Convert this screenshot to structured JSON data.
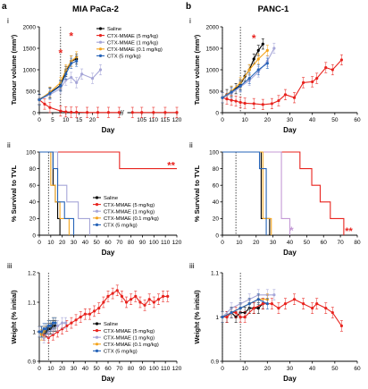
{
  "panel_letters": [
    "a",
    "b"
  ],
  "columns": [
    "MIA PaCa-2",
    "PANC-1"
  ],
  "row_labels": [
    "i",
    "ii",
    "iii"
  ],
  "legend": [
    "Saline",
    "CTX-MMAE (5 mg/kg)",
    "CTX-MMAE (1 mg/kg)",
    "CTX-MMAE (0.1 mg/kg)",
    "CTX (5 mg/kg)"
  ],
  "colors": {
    "saline": "#000000",
    "ctx5": "#e8231e",
    "ctx1": "#a6a6d8",
    "ctx01": "#f4a41c",
    "ctxonly": "#2563b8",
    "mmae_panc": "#c49ad6"
  },
  "annotations": {
    "star": "*",
    "double_star": "**"
  },
  "chart_data": [
    {
      "id": "a-i",
      "type": "line",
      "row_label": "i",
      "xlabel": "Day",
      "ylabel": "Tumour volume (mm³)",
      "xlim": [
        0,
        120
      ],
      "ylim": [
        0,
        2000
      ],
      "broken_x_axis": [
        [
          0,
          30
        ],
        [
          100,
          120
        ]
      ],
      "xticks": [
        0,
        5,
        10,
        15,
        20,
        105,
        110,
        115,
        120
      ],
      "yticks": [
        0,
        500,
        1000,
        1500,
        2000
      ],
      "vline": 8,
      "legend_position": "right",
      "series": [
        {
          "name": "Saline",
          "color": "#000000",
          "x": [
            0,
            4,
            8,
            10,
            12,
            14
          ],
          "y": [
            310,
            460,
            640,
            960,
            1200,
            1250
          ]
        },
        {
          "name": "CTX-MMAE (5 mg/kg)",
          "color": "#e8231e",
          "x": [
            0,
            2,
            4,
            8,
            10,
            12,
            14,
            18,
            22,
            26,
            30,
            101,
            105,
            110,
            115,
            120
          ],
          "y": [
            300,
            200,
            120,
            40,
            20,
            10,
            10,
            5,
            5,
            5,
            5,
            5,
            5,
            5,
            5,
            5
          ]
        },
        {
          "name": "CTX-MMAE (1 mg/kg)",
          "color": "#a6a6d8",
          "x": [
            0,
            4,
            8,
            10,
            12,
            14,
            16,
            20,
            23
          ],
          "y": [
            300,
            420,
            560,
            760,
            820,
            700,
            900,
            800,
            1000
          ]
        },
        {
          "name": "CTX-MMAE (0.1 mg/kg)",
          "color": "#f4a41c",
          "x": [
            0,
            4,
            8,
            10,
            12,
            14
          ],
          "y": [
            300,
            480,
            700,
            1000,
            1200,
            1300
          ]
        },
        {
          "name": "CTX (5 mg/kg)",
          "color": "#2563b8",
          "x": [
            0,
            4,
            8,
            10,
            12,
            14
          ],
          "y": [
            300,
            450,
            620,
            900,
            1150,
            1200
          ]
        }
      ],
      "stars": [
        {
          "x": 8,
          "y": 1300
        },
        {
          "x": 12,
          "y": 1700
        }
      ]
    },
    {
      "id": "a-ii",
      "type": "line",
      "row_label": "ii",
      "xlabel": "Day",
      "ylabel": "% Survival to TVL",
      "xlim": [
        0,
        120
      ],
      "ylim": [
        0,
        100
      ],
      "xticks": [
        0,
        10,
        20,
        30,
        40,
        50,
        60,
        70,
        80,
        90,
        100,
        110,
        120
      ],
      "yticks": [
        0,
        20,
        40,
        60,
        80,
        100
      ],
      "vline": 8,
      "legend_position": "bottom-right",
      "series": [
        {
          "name": "Saline",
          "color": "#000000",
          "step_x": [
            0,
            12,
            14,
            16,
            18
          ],
          "step_y": [
            100,
            60,
            40,
            20,
            0
          ]
        },
        {
          "name": "CTX-MMAE (5 mg/kg)",
          "color": "#e8231e",
          "step_x": [
            0,
            70,
            120
          ],
          "step_y": [
            100,
            80,
            80
          ]
        },
        {
          "name": "CTX-MMAE (1 mg/kg)",
          "color": "#a6a6d8",
          "step_x": [
            0,
            16,
            24,
            34,
            44
          ],
          "step_y": [
            100,
            60,
            40,
            20,
            0
          ]
        },
        {
          "name": "CTX-MMAE (0.1 mg/kg)",
          "color": "#f4a41c",
          "step_x": [
            0,
            10,
            14,
            18,
            26
          ],
          "step_y": [
            100,
            60,
            40,
            20,
            0
          ]
        },
        {
          "name": "CTX (5 mg/kg)",
          "color": "#2563b8",
          "step_x": [
            0,
            12,
            16,
            22,
            30
          ],
          "step_y": [
            100,
            80,
            40,
            20,
            0
          ]
        }
      ],
      "stars": [
        {
          "x": 115,
          "y": 80,
          "text": "**"
        }
      ]
    },
    {
      "id": "a-iii",
      "type": "line",
      "row_label": "iii",
      "xlabel": "Day",
      "ylabel": "Weight (% initial)",
      "xlim": [
        0,
        120
      ],
      "ylim": [
        0.9,
        1.2
      ],
      "xticks": [
        0,
        10,
        20,
        30,
        40,
        50,
        60,
        70,
        80,
        90,
        100,
        110,
        120
      ],
      "yticks": [
        0.9,
        1.0,
        1.1,
        1.2
      ],
      "vline": 8,
      "legend_position": "bottom-right",
      "series": [
        {
          "name": "Saline",
          "color": "#000000",
          "x": [
            0,
            2,
            4,
            6,
            8,
            10,
            12,
            14
          ],
          "y": [
            1.0,
            1.0,
            0.99,
            1.0,
            1.01,
            1.01,
            1.02,
            1.02
          ]
        },
        {
          "name": "CTX-MMAE (5 mg/kg)",
          "color": "#e8231e",
          "x": [
            0,
            4,
            8,
            12,
            16,
            20,
            24,
            28,
            32,
            36,
            40,
            44,
            48,
            52,
            56,
            60,
            64,
            68,
            72,
            76,
            80,
            84,
            88,
            92,
            96,
            100,
            104,
            108,
            112
          ],
          "y": [
            1.0,
            0.99,
            0.98,
            0.99,
            1.0,
            1.01,
            1.02,
            1.03,
            1.04,
            1.05,
            1.06,
            1.06,
            1.07,
            1.08,
            1.1,
            1.12,
            1.13,
            1.14,
            1.12,
            1.1,
            1.11,
            1.12,
            1.1,
            1.09,
            1.11,
            1.1,
            1.11,
            1.12,
            1.12
          ]
        },
        {
          "name": "CTX-MMAE (1 mg/kg)",
          "color": "#a6a6d8",
          "x": [
            0,
            4,
            8,
            12,
            16,
            20,
            23
          ],
          "y": [
            1.0,
            0.98,
            1.0,
            1.01,
            1.02,
            1.03,
            1.03
          ]
        },
        {
          "name": "CTX-MMAE (0.1 mg/kg)",
          "color": "#f4a41c",
          "x": [
            0,
            2,
            4,
            6,
            8,
            10,
            12,
            14
          ],
          "y": [
            1.0,
            0.99,
            1.0,
            1.01,
            1.02,
            1.02,
            1.03,
            1.03
          ]
        },
        {
          "name": "CTX (5 mg/kg)",
          "color": "#2563b8",
          "x": [
            0,
            2,
            4,
            6,
            8,
            10,
            12,
            14
          ],
          "y": [
            1.0,
            1.0,
            1.01,
            1.01,
            1.02,
            1.02,
            1.03,
            1.03
          ]
        }
      ]
    },
    {
      "id": "b-i",
      "type": "line",
      "row_label": "i",
      "xlabel": "Day",
      "ylabel": "Tumour volume (mm³)",
      "xlim": [
        0,
        60
      ],
      "ylim": [
        0,
        2000
      ],
      "xticks": [
        0,
        10,
        20,
        30,
        40,
        50,
        60
      ],
      "yticks": [
        0,
        500,
        1000,
        1500,
        2000
      ],
      "vlines": [
        0,
        8
      ],
      "series": [
        {
          "name": "Saline",
          "color": "#000000",
          "x": [
            0,
            2,
            4,
            6,
            8,
            10,
            12,
            14,
            16,
            18
          ],
          "y": [
            350,
            420,
            500,
            560,
            650,
            850,
            1000,
            1250,
            1450,
            1600
          ]
        },
        {
          "name": "CTX-MMAE (5 mg/kg)",
          "color": "#e8231e",
          "x": [
            0,
            2,
            4,
            6,
            8,
            10,
            14,
            18,
            22,
            25,
            28,
            32,
            36,
            40,
            42,
            46,
            49,
            53
          ],
          "y": [
            350,
            320,
            290,
            270,
            240,
            220,
            210,
            190,
            210,
            280,
            420,
            350,
            700,
            720,
            800,
            1050,
            1000,
            1230
          ]
        },
        {
          "name": "CTX-MMAE (1 mg/kg)",
          "color": "#a6a6d8",
          "x": [
            0,
            4,
            8,
            12,
            16,
            20,
            23
          ],
          "y": [
            350,
            450,
            600,
            750,
            950,
            1200,
            1500
          ]
        },
        {
          "name": "CTX-MMAE (0.1 mg/kg)",
          "color": "#f4a41c",
          "x": [
            0,
            4,
            8,
            12,
            16,
            20
          ],
          "y": [
            350,
            500,
            700,
            1000,
            1250,
            1450
          ]
        },
        {
          "name": "CTX (5 mg/kg)",
          "color": "#2563b8",
          "x": [
            0,
            4,
            8,
            12,
            16,
            20
          ],
          "y": [
            350,
            480,
            620,
            800,
            1000,
            1150
          ]
        }
      ],
      "stars": [
        {
          "x": 14,
          "y": 1650
        }
      ]
    },
    {
      "id": "b-ii",
      "type": "line",
      "row_label": "ii",
      "xlabel": "Day",
      "ylabel": "% Survival to TVL",
      "xlim": [
        0,
        80
      ],
      "ylim": [
        0,
        100
      ],
      "xticks": [
        0,
        10,
        20,
        30,
        40,
        50,
        60,
        70,
        80
      ],
      "yticks": [
        0,
        20,
        40,
        60,
        80,
        100
      ],
      "vlines": [
        0,
        8
      ],
      "series": [
        {
          "name": "Saline",
          "color": "#000000",
          "step_x": [
            0,
            23,
            28
          ],
          "step_y": [
            100,
            20,
            0
          ]
        },
        {
          "name": "CTX-MMAE (5 mg/kg)",
          "color": "#e8231e",
          "step_x": [
            0,
            46,
            53,
            58,
            64,
            72
          ],
          "step_y": [
            100,
            80,
            60,
            40,
            20,
            0
          ]
        },
        {
          "name": "CTX-MMAE (1 mg/kg)",
          "color": "#c49ad6",
          "step_x": [
            0,
            35,
            40
          ],
          "step_y": [
            100,
            20,
            0
          ]
        },
        {
          "name": "CTX-MMAE (0.1 mg/kg)",
          "color": "#f4a41c",
          "step_x": [
            0,
            24,
            29
          ],
          "step_y": [
            100,
            20,
            0
          ]
        },
        {
          "name": "CTX (5 mg/kg)",
          "color": "#2563b8",
          "step_x": [
            0,
            22,
            26
          ],
          "step_y": [
            100,
            80,
            0
          ]
        }
      ],
      "stars": [
        {
          "x": 41,
          "y": 0,
          "text": "*",
          "color": "#c49ad6"
        },
        {
          "x": 75,
          "y": 0,
          "text": "**",
          "color": "#e8231e"
        }
      ]
    },
    {
      "id": "b-iii",
      "type": "line",
      "row_label": "iii",
      "xlabel": "Day",
      "ylabel": "Weight (% initial)",
      "xlim": [
        0,
        60
      ],
      "ylim": [
        0.9,
        1.1
      ],
      "xticks": [
        0,
        10,
        20,
        30,
        40,
        50,
        60
      ],
      "yticks": [
        0.9,
        1.0,
        1.1
      ],
      "vlines": [
        0,
        8
      ],
      "series": [
        {
          "name": "Saline",
          "color": "#000000",
          "x": [
            0,
            2,
            4,
            6,
            8,
            10,
            12,
            14,
            16,
            18
          ],
          "y": [
            1.0,
            1.0,
            1.01,
            1.0,
            1.01,
            1.01,
            1.02,
            1.02,
            1.02,
            1.03
          ]
        },
        {
          "name": "CTX-MMAE (5 mg/kg)",
          "color": "#e8231e",
          "x": [
            0,
            2,
            4,
            6,
            8,
            10,
            14,
            18,
            22,
            25,
            28,
            32,
            36,
            40,
            42,
            46,
            49,
            53
          ],
          "y": [
            1.0,
            1.0,
            1.01,
            1.01,
            1.0,
            1.0,
            1.02,
            1.03,
            1.03,
            1.02,
            1.03,
            1.04,
            1.03,
            1.02,
            1.03,
            1.02,
            1.01,
            0.98
          ]
        },
        {
          "name": "CTX-MMAE (1 mg/kg)",
          "color": "#a6a6d8",
          "x": [
            0,
            4,
            8,
            12,
            16,
            20,
            23
          ],
          "y": [
            1.0,
            1.02,
            1.03,
            1.04,
            1.05,
            1.05,
            1.05
          ]
        },
        {
          "name": "CTX-MMAE (0.1 mg/kg)",
          "color": "#f4a41c",
          "x": [
            0,
            4,
            8,
            12,
            16,
            20
          ],
          "y": [
            1.0,
            1.01,
            1.02,
            1.03,
            1.04,
            1.04
          ]
        },
        {
          "name": "CTX (5 mg/kg)",
          "color": "#2563b8",
          "x": [
            0,
            4,
            8,
            12,
            16,
            20
          ],
          "y": [
            1.0,
            1.01,
            1.02,
            1.03,
            1.04,
            1.03
          ]
        }
      ]
    }
  ]
}
